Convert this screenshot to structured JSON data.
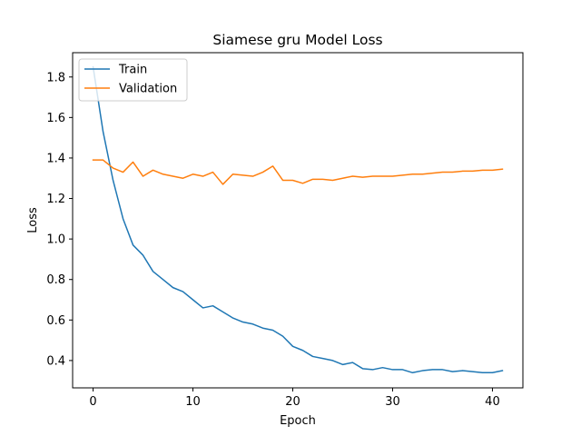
{
  "chart_data": {
    "type": "line",
    "title": "Siamese gru Model Loss",
    "xlabel": "Epoch",
    "ylabel": "Loss",
    "xlim": [
      -2.05,
      43.05
    ],
    "ylim": [
      0.265,
      1.92
    ],
    "xticks": [
      0,
      10,
      20,
      30,
      40
    ],
    "yticks": [
      0.4,
      0.6,
      0.8,
      1.0,
      1.2,
      1.4,
      1.6,
      1.8
    ],
    "ytick_labels": [
      "0.4",
      "0.6",
      "0.8",
      "1.0",
      "1.2",
      "1.4",
      "1.6",
      "1.8"
    ],
    "grid": false,
    "legend_position": "top-left",
    "x": [
      0,
      1,
      2,
      3,
      4,
      5,
      6,
      7,
      8,
      9,
      10,
      11,
      12,
      13,
      14,
      15,
      16,
      17,
      18,
      19,
      20,
      21,
      22,
      23,
      24,
      25,
      26,
      27,
      28,
      29,
      30,
      31,
      32,
      33,
      34,
      35,
      36,
      37,
      38,
      39,
      40,
      41
    ],
    "series": [
      {
        "name": "Train",
        "color": "#1f77b4",
        "values": [
          1.85,
          1.53,
          1.29,
          1.1,
          0.97,
          0.92,
          0.84,
          0.8,
          0.76,
          0.74,
          0.7,
          0.66,
          0.67,
          0.64,
          0.61,
          0.59,
          0.58,
          0.56,
          0.55,
          0.52,
          0.47,
          0.45,
          0.42,
          0.41,
          0.4,
          0.38,
          0.39,
          0.36,
          0.355,
          0.365,
          0.355,
          0.355,
          0.34,
          0.35,
          0.355,
          0.355,
          0.345,
          0.35,
          0.345,
          0.34,
          0.34,
          0.35
        ]
      },
      {
        "name": "Validation",
        "color": "#ff7f0e",
        "values": [
          1.39,
          1.39,
          1.35,
          1.33,
          1.38,
          1.31,
          1.34,
          1.32,
          1.31,
          1.3,
          1.32,
          1.31,
          1.33,
          1.27,
          1.32,
          1.315,
          1.31,
          1.33,
          1.36,
          1.29,
          1.29,
          1.275,
          1.295,
          1.295,
          1.29,
          1.3,
          1.31,
          1.305,
          1.31,
          1.31,
          1.31,
          1.315,
          1.32,
          1.32,
          1.325,
          1.33,
          1.33,
          1.335,
          1.335,
          1.34,
          1.34,
          1.345
        ]
      }
    ]
  }
}
